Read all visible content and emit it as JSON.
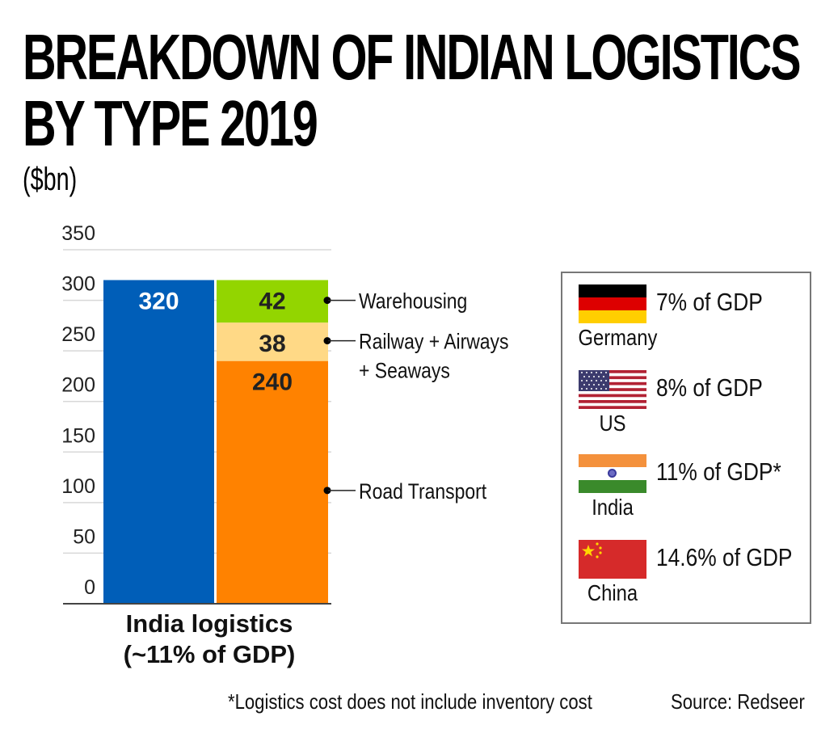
{
  "header": {
    "title_line1": "BREAKDOWN OF INDIAN LOGISTICS",
    "title_line2": "BY TYPE 2019",
    "unit": "($bn)"
  },
  "chart_data": {
    "type": "bar",
    "title": "BREAKDOWN OF INDIAN LOGISTICS BY TYPE 2019",
    "ylabel": "($bn)",
    "xlabel": "",
    "ylim": [
      0,
      350
    ],
    "yticks": [
      0,
      50,
      100,
      150,
      200,
      250,
      300,
      350
    ],
    "grid": true,
    "category_label_line1": "India logistics",
    "category_label_line2": "(~11% of GDP)",
    "total_bar": {
      "name": "Total",
      "value": 320,
      "color": "#005eb8",
      "label": "320"
    },
    "stacked_bar": {
      "segments": [
        {
          "name": "Road Transport",
          "value": 240,
          "color": "#ff8200",
          "label": "240",
          "annotation_lines": [
            "Road Transport"
          ]
        },
        {
          "name": "Railway + Airways + Seaways",
          "value": 38,
          "color": "#ffd986",
          "label": "38",
          "annotation_lines": [
            "Railway + Airways",
            "+ Seaways"
          ]
        },
        {
          "name": "Warehousing",
          "value": 42,
          "color": "#93d500",
          "label": "42",
          "annotation_lines": [
            "Warehousing"
          ]
        }
      ]
    }
  },
  "legend": {
    "items": [
      {
        "country": "Germany",
        "text": "7% of GDP",
        "flag": "germany-flag"
      },
      {
        "country": "US",
        "text": "8% of GDP",
        "flag": "us-flag"
      },
      {
        "country": "India",
        "text": "11% of GDP*",
        "flag": "india-flag"
      },
      {
        "country": "China",
        "text": "14.6% of GDP",
        "flag": "china-flag"
      }
    ]
  },
  "footer": {
    "footnote": "*Logistics cost does not include inventory cost",
    "source": "Source: Redseer"
  }
}
